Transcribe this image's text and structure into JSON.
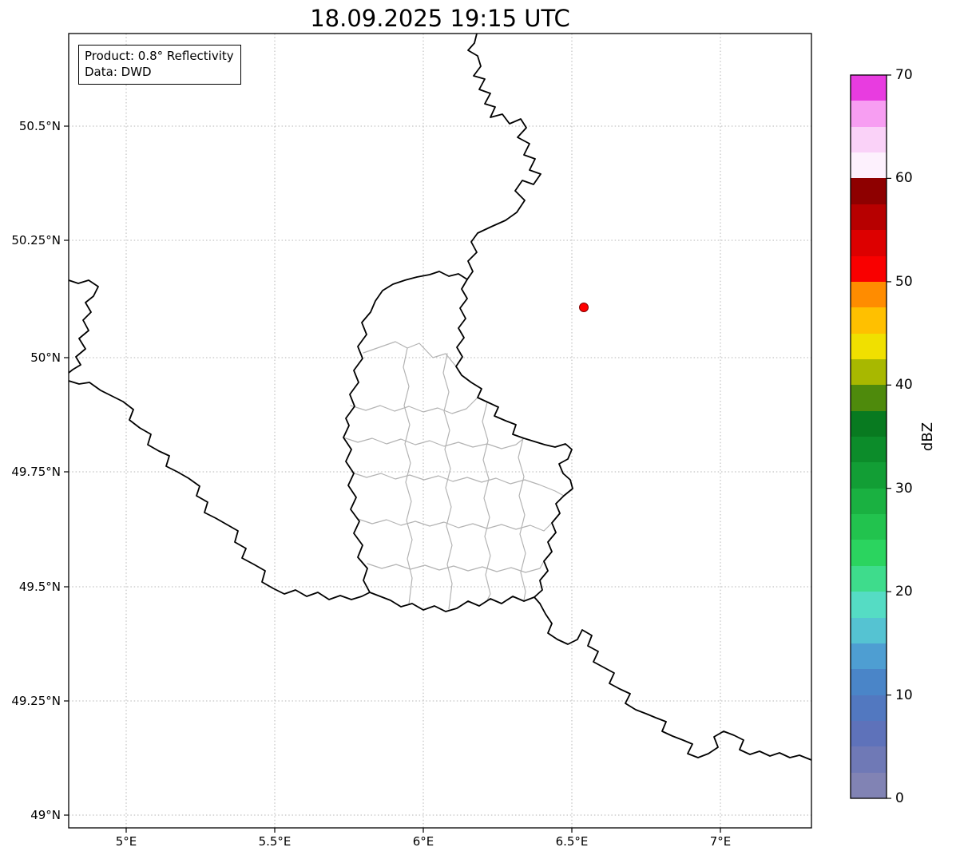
{
  "title": "18.09.2025 19:15 UTC",
  "info_box": {
    "product": "Product: 0.8° Reflectivity",
    "source": "Data: DWD"
  },
  "axes": {
    "x_tick_labels": [
      "5°E",
      "5.5°E",
      "6°E",
      "6.5°E",
      "7°E"
    ],
    "y_tick_labels": [
      "50.5°N",
      "50.25°N",
      "50°N",
      "49.75°N",
      "49.5°N",
      "49.25°N",
      "49°N"
    ]
  },
  "colorbar": {
    "label": "dBZ",
    "min": 0,
    "max": 70,
    "tick_labels_top_to_bottom": [
      "70",
      "60",
      "50",
      "40",
      "30",
      "20",
      "10",
      "0"
    ],
    "segments_bottom_to_top": [
      {
        "from": 0.0,
        "to": 2.5,
        "color": "#8183b4"
      },
      {
        "from": 2.5,
        "to": 5.0,
        "color": "#6f79b6"
      },
      {
        "from": 5.0,
        "to": 7.5,
        "color": "#5e72ba"
      },
      {
        "from": 7.5,
        "to": 10.0,
        "color": "#5278c0"
      },
      {
        "from": 10.0,
        "to": 12.5,
        "color": "#4a85c8"
      },
      {
        "from": 12.5,
        "to": 15.0,
        "color": "#4e9ed2"
      },
      {
        "from": 15.0,
        "to": 17.5,
        "color": "#55c3d2"
      },
      {
        "from": 17.5,
        "to": 20.0,
        "color": "#55dcc4"
      },
      {
        "from": 20.0,
        "to": 22.5,
        "color": "#3edc8c"
      },
      {
        "from": 22.5,
        "to": 25.0,
        "color": "#2bd45f"
      },
      {
        "from": 25.0,
        "to": 27.5,
        "color": "#22c34e"
      },
      {
        "from": 27.5,
        "to": 30.0,
        "color": "#1ab141"
      },
      {
        "from": 30.0,
        "to": 32.5,
        "color": "#129e35"
      },
      {
        "from": 32.5,
        "to": 35.0,
        "color": "#0c8c2a"
      },
      {
        "from": 35.0,
        "to": 37.5,
        "color": "#087a20"
      },
      {
        "from": 37.5,
        "to": 40.0,
        "color": "#4e8a0c"
      },
      {
        "from": 40.0,
        "to": 42.5,
        "color": "#a8b800"
      },
      {
        "from": 42.5,
        "to": 45.0,
        "color": "#f0e000"
      },
      {
        "from": 45.0,
        "to": 47.5,
        "color": "#ffc000"
      },
      {
        "from": 47.5,
        "to": 50.0,
        "color": "#ff8c00"
      },
      {
        "from": 50.0,
        "to": 52.5,
        "color": "#f90000"
      },
      {
        "from": 52.5,
        "to": 55.0,
        "color": "#dd0000"
      },
      {
        "from": 55.0,
        "to": 57.5,
        "color": "#b70000"
      },
      {
        "from": 57.5,
        "to": 60.0,
        "color": "#8e0000"
      },
      {
        "from": 60.0,
        "to": 62.5,
        "color": "#fdf1fd"
      },
      {
        "from": 62.5,
        "to": 65.0,
        "color": "#fad2f8"
      },
      {
        "from": 65.0,
        "to": 67.5,
        "color": "#f79ef2"
      },
      {
        "from": 67.5,
        "to": 70.0,
        "color": "#e83ce0"
      }
    ]
  },
  "marker": {
    "color": "#ff0000",
    "lon_deg_e": 6.54,
    "lat_deg_n": 50.1
  },
  "chart_data": {
    "type": "map",
    "title": "18.09.2025 19:15 UTC",
    "x_axis": {
      "ticks": [
        "5°E",
        "5.5°E",
        "6°E",
        "6.5°E",
        "7°E"
      ],
      "range_deg_e": [
        4.81,
        7.31
      ]
    },
    "y_axis": {
      "ticks": [
        "50.5°N",
        "50.25°N",
        "50°N",
        "49.75°N",
        "49.5°N",
        "49.25°N",
        "49°N"
      ],
      "range_deg_n": [
        48.97,
        50.7
      ]
    },
    "colorbar": {
      "label": "dBZ",
      "range": [
        0,
        70
      ],
      "tick_step": 10,
      "segment_step": 2.5
    },
    "radar_marker": {
      "lon_deg_e": 6.54,
      "lat_deg_n": 50.1,
      "color": "#ff0000"
    },
    "reflectivity_echoes": [],
    "grid": "dotted",
    "annotation_box": [
      "Product: 0.8° Reflectivity",
      "Data: DWD"
    ]
  }
}
